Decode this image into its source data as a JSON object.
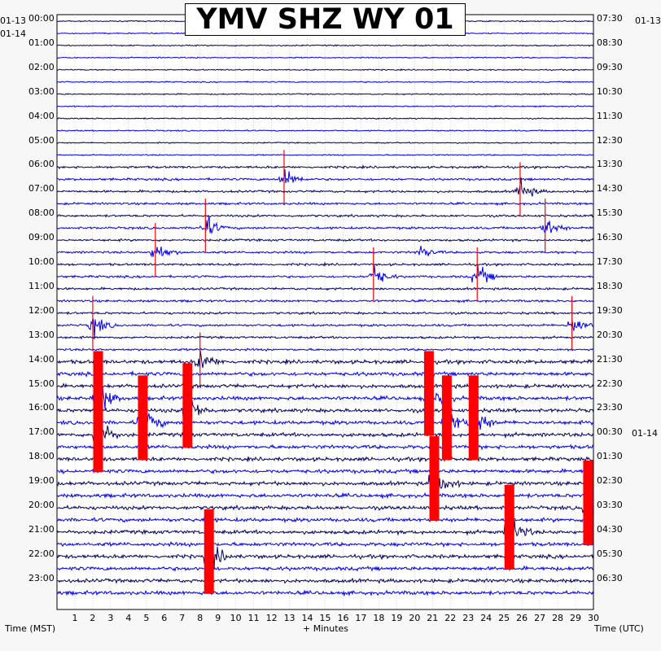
{
  "title": "YMV SHZ WY 01",
  "left_top_labels": [
    "01-13",
    "01-14"
  ],
  "right_top_label": "01-13",
  "right_date_change": "01-14",
  "x_axis_title": "+ Minutes",
  "left_axis_title": "Time (MST)",
  "right_axis_title": "Time (UTC)",
  "chart_data": {
    "type": "helicorder",
    "title": "YMV SHZ WY 01",
    "xlabel": "+ Minutes",
    "ylabel_left": "Time (MST)",
    "ylabel_right": "Time (UTC)",
    "xlim": [
      0,
      30
    ],
    "x_ticks": [
      1,
      2,
      3,
      4,
      5,
      6,
      7,
      8,
      9,
      10,
      11,
      12,
      13,
      14,
      15,
      16,
      17,
      18,
      19,
      20,
      21,
      22,
      23,
      24,
      25,
      26,
      27,
      28,
      29,
      30
    ],
    "rows_per_hour": 2,
    "row_minutes": 30,
    "trace_colors": [
      "#000066",
      "#0000ee"
    ],
    "clip_color": "#ff0000",
    "left_hour_labels": [
      "00:00",
      "01:00",
      "02:00",
      "03:00",
      "04:00",
      "05:00",
      "06:00",
      "07:00",
      "08:00",
      "09:00",
      "10:00",
      "11:00",
      "12:00",
      "13:00",
      "14:00",
      "15:00",
      "16:00",
      "17:00",
      "18:00",
      "19:00",
      "20:00",
      "21:00",
      "22:00",
      "23:00"
    ],
    "right_hour_labels": [
      "07:30",
      "08:30",
      "09:30",
      "10:30",
      "11:30",
      "12:30",
      "13:30",
      "14:30",
      "15:30",
      "16:30",
      "17:30",
      "18:30",
      "19:30",
      "20:30",
      "21:30",
      "22:30",
      "23:30",
      "00:30",
      "01:30",
      "02:30",
      "03:30",
      "04:30",
      "05:30",
      "06:30"
    ],
    "events": [
      {
        "hour": "06:30",
        "minute": 12.7,
        "amp": "medium"
      },
      {
        "hour": "07:00",
        "minute": 25.9,
        "amp": "medium"
      },
      {
        "hour": "08:30",
        "minute": 8.3,
        "amp": "medium"
      },
      {
        "hour": "08:30",
        "minute": 27.3,
        "amp": "medium"
      },
      {
        "hour": "09:30",
        "minute": 5.5,
        "amp": "medium"
      },
      {
        "hour": "09:30",
        "minute": 20.3,
        "amp": "small"
      },
      {
        "hour": "10:30",
        "minute": 17.7,
        "amp": "medium"
      },
      {
        "hour": "10:30",
        "minute": 23.5,
        "amp": "medium"
      },
      {
        "hour": "12:30",
        "minute": 2.0,
        "amp": "medium"
      },
      {
        "hour": "12:30",
        "minute": 28.8,
        "amp": "medium"
      },
      {
        "hour": "14:00",
        "minute": 8.0,
        "amp": "medium"
      },
      {
        "hour": "15:30",
        "minute": 2.3,
        "amp": "clipped"
      },
      {
        "hour": "15:30",
        "minute": 20.8,
        "amp": "clipped"
      },
      {
        "hour": "16:00",
        "minute": 7.3,
        "amp": "clipped"
      },
      {
        "hour": "16:30",
        "minute": 4.8,
        "amp": "clipped"
      },
      {
        "hour": "16:30",
        "minute": 21.8,
        "amp": "clipped"
      },
      {
        "hour": "16:30",
        "minute": 23.3,
        "amp": "clipped"
      },
      {
        "hour": "17:00",
        "minute": 2.3,
        "amp": "clipped"
      },
      {
        "hour": "19:00",
        "minute": 21.1,
        "amp": "clipped"
      },
      {
        "hour": "20:00",
        "minute": 29.7,
        "amp": "clipped"
      },
      {
        "hour": "21:00",
        "minute": 25.3,
        "amp": "clipped"
      },
      {
        "hour": "22:00",
        "minute": 8.5,
        "amp": "clipped"
      }
    ]
  }
}
